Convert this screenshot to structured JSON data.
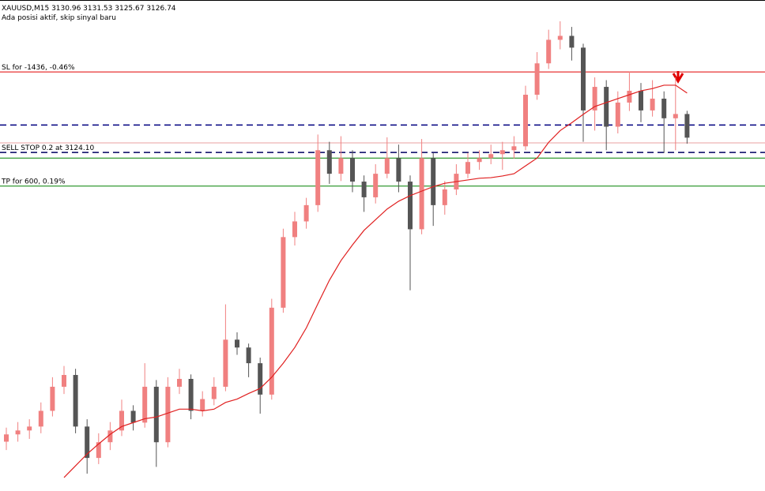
{
  "chart_data": {
    "type": "candlestick",
    "title": "XAUUSD,M15  3130.96 3131.53 3125.67 3126.74",
    "subtitle": "Ada posisi aktif, skip sinyal baru",
    "ylim": [
      3063.7,
      3151.3
    ],
    "up_color": "#f08080",
    "down_color": "#555555",
    "candles": [
      [
        3072.5,
        3075.0,
        3071.0,
        3073.8
      ],
      [
        3073.8,
        3076.0,
        3072.5,
        3074.5
      ],
      [
        3074.5,
        3076.5,
        3073.0,
        3075.2
      ],
      [
        3075.2,
        3079.5,
        3074.0,
        3078.0
      ],
      [
        3078.0,
        3084.0,
        3077.0,
        3082.3
      ],
      [
        3082.3,
        3086.0,
        3081.0,
        3084.4
      ],
      [
        3084.4,
        3085.5,
        3074.0,
        3075.2
      ],
      [
        3075.2,
        3076.5,
        3066.8,
        3069.6
      ],
      [
        3069.6,
        3074.0,
        3068.5,
        3072.4
      ],
      [
        3072.4,
        3076.0,
        3071.0,
        3074.5
      ],
      [
        3074.5,
        3080.0,
        3073.5,
        3078.0
      ],
      [
        3078.0,
        3079.0,
        3074.5,
        3075.9
      ],
      [
        3075.9,
        3086.5,
        3075.0,
        3082.3
      ],
      [
        3082.3,
        3083.5,
        3068.0,
        3072.4
      ],
      [
        3072.4,
        3084.0,
        3071.5,
        3082.3
      ],
      [
        3082.3,
        3085.5,
        3081.0,
        3083.7
      ],
      [
        3083.7,
        3084.5,
        3076.5,
        3078.0
      ],
      [
        3078.0,
        3081.5,
        3077.0,
        3080.1
      ],
      [
        3080.1,
        3084.0,
        3079.0,
        3082.3
      ],
      [
        3082.3,
        3097.0,
        3081.5,
        3090.7
      ],
      [
        3090.7,
        3092.0,
        3088.0,
        3089.3
      ],
      [
        3089.3,
        3090.0,
        3084.0,
        3086.5
      ],
      [
        3086.5,
        3087.5,
        3077.5,
        3080.9
      ],
      [
        3080.9,
        3098.0,
        3080.0,
        3096.4
      ],
      [
        3096.4,
        3110.5,
        3095.5,
        3109.0
      ],
      [
        3109.0,
        3113.5,
        3107.5,
        3111.8
      ],
      [
        3111.8,
        3116.0,
        3110.5,
        3114.7
      ],
      [
        3114.7,
        3127.3,
        3113.5,
        3124.5
      ],
      [
        3124.5,
        3126.0,
        3118.5,
        3120.3
      ],
      [
        3120.3,
        3127.0,
        3119.0,
        3123.1
      ],
      [
        3123.1,
        3124.5,
        3117.0,
        3118.9
      ],
      [
        3118.9,
        3120.0,
        3113.5,
        3116.1
      ],
      [
        3116.1,
        3122.0,
        3115.0,
        3120.3
      ],
      [
        3120.3,
        3126.8,
        3119.5,
        3123.1
      ],
      [
        3123.1,
        3125.5,
        3117.0,
        3118.9
      ],
      [
        3118.9,
        3120.0,
        3099.5,
        3110.4
      ],
      [
        3110.4,
        3126.5,
        3109.5,
        3123.1
      ],
      [
        3123.1,
        3124.0,
        3111.0,
        3114.7
      ],
      [
        3114.7,
        3119.0,
        3113.0,
        3117.5
      ],
      [
        3117.5,
        3122.0,
        3116.5,
        3120.3
      ],
      [
        3120.3,
        3124.0,
        3119.5,
        3122.4
      ],
      [
        3122.4,
        3124.5,
        3121.0,
        3123.1
      ],
      [
        3123.1,
        3125.5,
        3122.0,
        3123.8
      ],
      [
        3123.8,
        3126.0,
        3121.0,
        3124.5
      ],
      [
        3124.5,
        3127.0,
        3123.0,
        3125.2
      ],
      [
        3125.2,
        3136.0,
        3124.5,
        3134.4
      ],
      [
        3134.4,
        3142.0,
        3133.5,
        3140.0
      ],
      [
        3140.0,
        3146.0,
        3139.0,
        3144.2
      ],
      [
        3144.2,
        3147.5,
        3142.5,
        3144.9
      ],
      [
        3144.9,
        3146.5,
        3140.5,
        3142.8
      ],
      [
        3142.8,
        3143.5,
        3126.0,
        3131.6
      ],
      [
        3131.6,
        3137.5,
        3128.0,
        3135.8
      ],
      [
        3135.8,
        3137.0,
        3124.5,
        3128.7
      ],
      [
        3128.7,
        3135.0,
        3127.5,
        3133.0
      ],
      [
        3133.0,
        3138.5,
        3131.5,
        3135.1
      ],
      [
        3135.1,
        3136.5,
        3129.5,
        3131.6
      ],
      [
        3131.6,
        3137.0,
        3130.5,
        3133.7
      ],
      [
        3133.7,
        3135.0,
        3124.0,
        3130.2
      ],
      [
        3130.2,
        3137.5,
        3124.5,
        3130.96
      ],
      [
        3130.96,
        3131.53,
        3125.67,
        3126.74
      ]
    ],
    "ma": {
      "color": "#e02020",
      "values": [
        null,
        null,
        null,
        null,
        null,
        3066.1,
        3068.2,
        3070.3,
        3072.1,
        3073.8,
        3075.2,
        3075.9,
        3076.6,
        3076.9,
        3077.6,
        3078.3,
        3078.3,
        3078.0,
        3078.3,
        3079.5,
        3080.1,
        3081.1,
        3082.0,
        3084.0,
        3086.5,
        3089.3,
        3092.8,
        3097.1,
        3101.3,
        3104.8,
        3107.6,
        3110.2,
        3112.1,
        3114.0,
        3115.4,
        3116.4,
        3117.2,
        3118.0,
        3118.6,
        3118.9,
        3119.2,
        3119.5,
        3119.6,
        3119.9,
        3120.3,
        3121.7,
        3123.1,
        3125.9,
        3128.0,
        3129.4,
        3130.9,
        3132.3,
        3133.0,
        3133.7,
        3134.4,
        3135.1,
        3135.5,
        3136.1,
        3136.1,
        3134.7
      ]
    },
    "levels": [
      {
        "label": "SL for -1436, -0.46%",
        "price": 3138.46,
        "color": "#e00000",
        "dashed": false
      },
      {
        "price": 3129.0,
        "color": "#000080",
        "dashed": true
      },
      {
        "price": 3125.8,
        "color": "#e8a0a0",
        "dashed": false
      },
      {
        "label": "SELL STOP 0.2 at 3124.10",
        "price": 3124.1,
        "color": "#000060",
        "dashed": true
      },
      {
        "price": 3123.1,
        "color": "#008000",
        "dashed": false
      },
      {
        "label": "TP for 600, 0.19%",
        "price": 3118.1,
        "color": "#008000",
        "dashed": false
      }
    ]
  }
}
